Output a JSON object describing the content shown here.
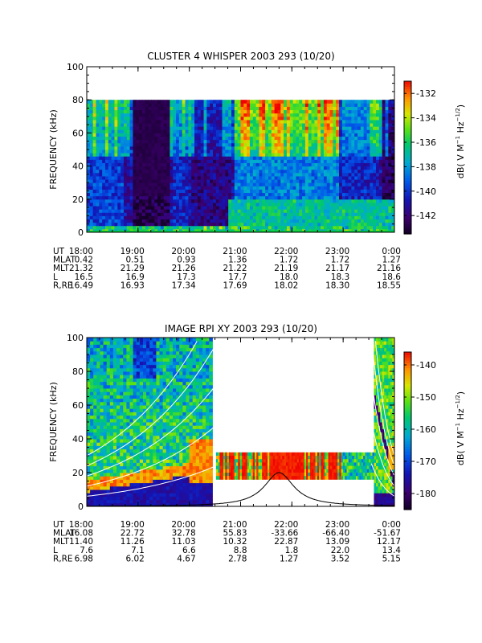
{
  "chart_data": [
    {
      "type": "heatmap",
      "title": "CLUSTER 4 WHISPER 2003 293 (10/20)",
      "ylabel": "FREQUENCY (kHz)",
      "ylim": [
        0,
        100
      ],
      "yticks": [
        "0",
        "20",
        "40",
        "60",
        "80",
        "100"
      ],
      "data_max_freq_khz": 80,
      "xticks": [
        "18:00",
        "19:00",
        "20:00",
        "21:00",
        "22:00",
        "23:00",
        "0:00"
      ],
      "xlim_hours": [
        18,
        24
      ],
      "colorbar": {
        "label": "dB( V M^-1 Hz^-1/2)",
        "ticks": [
          "-132",
          "-134",
          "-136",
          "-138",
          "-140",
          "-142"
        ],
        "range": [
          -143.5,
          -131
        ]
      },
      "ephemeris": [
        {
          "label": "UT",
          "values": [
            "18:00",
            "19:00",
            "20:00",
            "21:00",
            "22:00",
            "23:00",
            "0:00"
          ]
        },
        {
          "label": "MLAT",
          "values": [
            "0.42",
            "0.51",
            "0.93",
            "1.36",
            "1.72",
            "1.72",
            "1.27"
          ]
        },
        {
          "label": "MLT",
          "values": [
            "21.32",
            "21.29",
            "21.26",
            "21.22",
            "21.19",
            "21.17",
            "21.16"
          ]
        },
        {
          "label": "L",
          "values": [
            "16.5",
            "16.9",
            "17.3",
            "17.7",
            "18.0",
            "18.3",
            "18.6"
          ]
        },
        {
          "label": "R,RE",
          "values": [
            "16.49",
            "16.93",
            "17.34",
            "17.69",
            "18.02",
            "18.30",
            "18.55"
          ]
        }
      ]
    },
    {
      "type": "heatmap",
      "title": "IMAGE RPI XY 2003 293 (10/20)",
      "ylabel": "FREQUENCY (kHz)",
      "ylim": [
        0,
        100
      ],
      "yticks": [
        "0",
        "20",
        "40",
        "60",
        "80",
        "100"
      ],
      "xticks": [
        "18:00",
        "19:00",
        "20:00",
        "21:00",
        "22:00",
        "23:00",
        "0:00"
      ],
      "xlim_hours": [
        18,
        24
      ],
      "colorbar": {
        "label": "dB( V M^-1 Hz^-1/2)",
        "ticks": [
          "-140",
          "-150",
          "-160",
          "-170",
          "-180"
        ],
        "range": [
          -185,
          -136
        ]
      },
      "ephemeris": [
        {
          "label": "UT",
          "values": [
            "18:00",
            "19:00",
            "20:00",
            "21:00",
            "22:00",
            "23:00",
            "0:00"
          ]
        },
        {
          "label": "MLAT",
          "values": [
            "16.08",
            "22.72",
            "32.78",
            "55.83",
            "-33.66",
            "-66.40",
            "-51.67"
          ]
        },
        {
          "label": "MLT",
          "values": [
            "11.40",
            "11.26",
            "11.03",
            "10.32",
            "22.87",
            "13.09",
            "12.17"
          ]
        },
        {
          "label": "L",
          "values": [
            "7.6",
            "7.1",
            "6.6",
            "8.8",
            "1.8",
            "22.0",
            "13.4"
          ]
        },
        {
          "label": "R,RE",
          "values": [
            "6.98",
            "6.02",
            "4.67",
            "2.78",
            "1.27",
            "3.52",
            "5.15"
          ]
        }
      ]
    }
  ]
}
